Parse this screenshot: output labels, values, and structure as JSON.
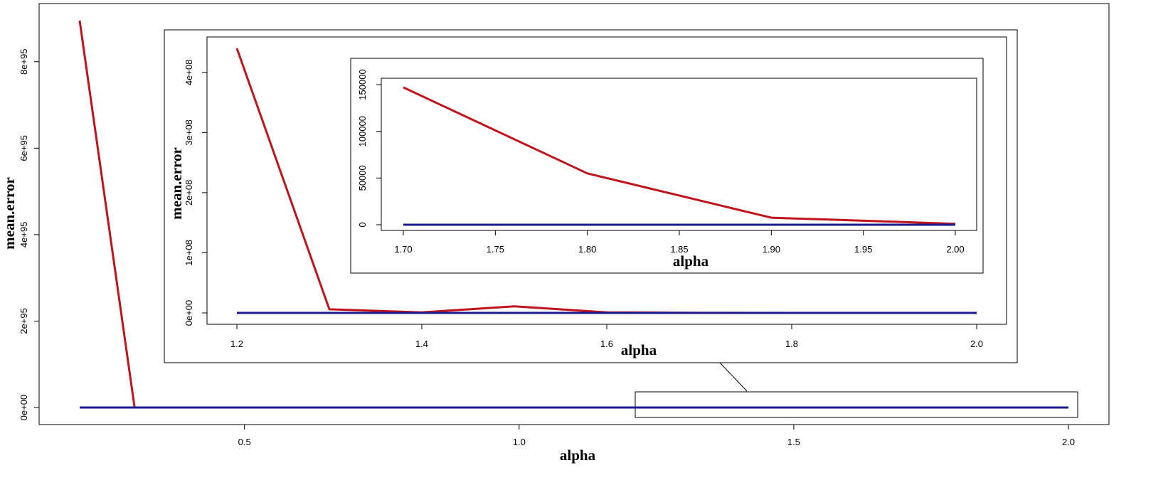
{
  "chart_data": [
    {
      "type": "line",
      "title": "",
      "xlabel": "alpha",
      "ylabel": "mean.error",
      "xlim": [
        0.2,
        2.0
      ],
      "ylim": [
        0,
        9e+95
      ],
      "x_ticks": [
        0.5,
        1.0,
        1.5,
        2.0
      ],
      "x_tick_labels": [
        "0.5",
        "1.0",
        "1.5",
        "2.0"
      ],
      "y_ticks": [
        0,
        2e+95,
        4e+95,
        6e+95,
        8e+95
      ],
      "y_tick_labels": [
        "0e+00",
        "2e+95",
        "4e+95",
        "6e+95",
        "8e+95"
      ],
      "grid": false,
      "legend": "none",
      "series": [
        {
          "color": "#c0141c",
          "x": [
            0.2,
            0.3,
            0.4,
            0.6,
            0.8,
            1.0,
            1.2,
            1.4,
            1.6,
            1.8,
            2.0
          ],
          "y": [
            8.95e+95,
            1e+92,
            1e+90,
            1e+80,
            1e+70,
            1e+40,
            1e+20,
            10000000000.0,
            100000000.0,
            1000000.0,
            10000.0
          ]
        },
        {
          "color": "#1a1a8c",
          "x": [
            0.2,
            0.3,
            0.4,
            0.6,
            0.8,
            1.0,
            1.2,
            1.4,
            1.6,
            1.8,
            2.0
          ],
          "y": [
            0,
            0,
            0,
            0,
            0,
            0,
            0,
            0,
            0,
            0,
            0
          ]
        }
      ]
    },
    {
      "type": "line",
      "title": "",
      "xlabel": "alpha",
      "ylabel": "mean.error",
      "xlim": [
        1.2,
        2.0
      ],
      "ylim": [
        0,
        440000000.0
      ],
      "x_ticks": [
        1.2,
        1.4,
        1.6,
        1.8,
        2.0
      ],
      "x_tick_labels": [
        "1.2",
        "1.4",
        "1.6",
        "1.8",
        "2.0"
      ],
      "y_ticks": [
        0,
        100000000.0,
        200000000.0,
        300000000.0,
        400000000.0
      ],
      "y_tick_labels": [
        "0e+00",
        "1e+08",
        "2e+08",
        "3e+08",
        "4e+08"
      ],
      "grid": false,
      "legend": "none",
      "series": [
        {
          "color": "#c0141c",
          "x": [
            1.2,
            1.3,
            1.4,
            1.5,
            1.6,
            1.7,
            1.8,
            1.9,
            2.0
          ],
          "y": [
            440000000.0,
            6000000.0,
            1000000.0,
            11000000.0,
            1000000.0,
            150000.0,
            55000.0,
            7000.0,
            1000.0
          ]
        },
        {
          "color": "#1a1a8c",
          "x": [
            1.2,
            1.3,
            1.4,
            1.5,
            1.6,
            1.7,
            1.8,
            1.9,
            2.0
          ],
          "y": [
            0,
            0,
            0,
            0,
            0,
            0,
            0,
            0,
            0
          ]
        }
      ]
    },
    {
      "type": "line",
      "title": "",
      "xlabel": "alpha",
      "ylabel": "",
      "xlim": [
        1.7,
        2.0
      ],
      "ylim": [
        0,
        150000
      ],
      "x_ticks": [
        1.7,
        1.75,
        1.8,
        1.85,
        1.9,
        1.95,
        2.0
      ],
      "x_tick_labels": [
        "1.70",
        "1.75",
        "1.80",
        "1.85",
        "1.90",
        "1.95",
        "2.00"
      ],
      "y_ticks": [
        0,
        50000,
        100000,
        150000
      ],
      "y_tick_labels": [
        "0",
        "50000",
        "100000",
        "150000"
      ],
      "grid": false,
      "legend": "none",
      "series": [
        {
          "color": "#c0141c",
          "x": [
            1.7,
            1.8,
            1.9,
            2.0
          ],
          "y": [
            147000,
            55000,
            7500,
            1000
          ]
        },
        {
          "color": "#1a1a8c",
          "x": [
            1.7,
            1.8,
            1.9,
            2.0
          ],
          "y": [
            0,
            0,
            0,
            0
          ]
        }
      ]
    }
  ]
}
